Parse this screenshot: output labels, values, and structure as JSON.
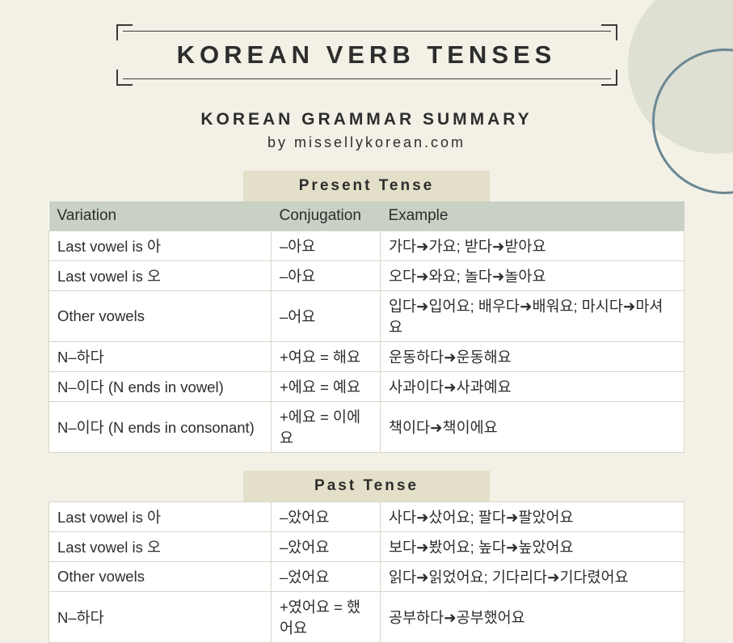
{
  "colors": {
    "page_bg": "#f3f1e6",
    "circle_fill": "#dde0d2",
    "circle_stroke": "#6b8793",
    "heading_bg": "#e3dfc9",
    "table_header_bg": "#c8d1c3",
    "table_bg": "#ffffff",
    "border": "#d8d5c6",
    "text": "#2d2d2d"
  },
  "title": "KOREAN VERB TENSES",
  "subtitle": "KOREAN GRAMMAR SUMMARY",
  "byline": "by missellykorean.com",
  "sections": [
    {
      "heading": "Present Tense",
      "columns": [
        "Variation",
        "Conjugation",
        "Example"
      ],
      "rows": [
        [
          "Last vowel is 아",
          "–아요",
          "가다➜가요; 받다➜받아요"
        ],
        [
          "Last vowel is 오",
          "–아요",
          "오다➜와요; 놀다➜놀아요"
        ],
        [
          "Other vowels",
          "–어요",
          "입다➜입어요; 배우다➜배워요; 마시다➜마셔요"
        ],
        [
          "N–하다",
          "+여요 = 해요",
          "운동하다➜운동해요"
        ],
        [
          "N–이다 (N ends in vowel)",
          "+에요 = 예요",
          "사과이다➜사과예요"
        ],
        [
          "N–이다 (N ends in consonant)",
          "+에요 = 이에요",
          "책이다➜책이에요"
        ]
      ]
    },
    {
      "heading": "Past Tense",
      "columns": [],
      "rows": [
        [
          "Last vowel is 아",
          "–았어요",
          "사다➜샀어요; 팔다➜팔았어요"
        ],
        [
          "Last vowel is 오",
          "–았어요",
          "보다➜봤어요; 높다➜높았어요"
        ],
        [
          "Other vowels",
          "–었어요",
          "읽다➜읽었어요; 기다리다➜기다렸어요"
        ],
        [
          "N–하다",
          "+였어요 = 했어요",
          "공부하다➜공부했어요"
        ]
      ]
    }
  ]
}
